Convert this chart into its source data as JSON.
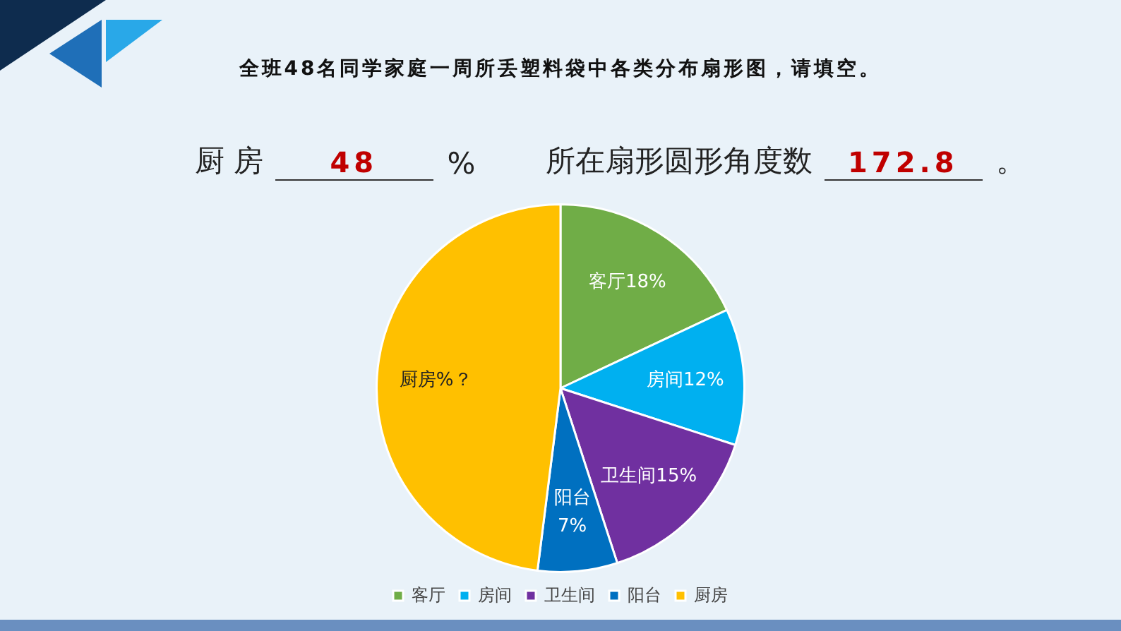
{
  "chart_data": {
    "type": "pie",
    "title": "全班48名同学家庭一周所丢塑料袋中各类分布扇形图，请填空。",
    "annotations": [
      "厨 房",
      "48",
      "%",
      "所在扇形圆形角度数",
      "172.8",
      "。"
    ],
    "categories": [
      "客厅",
      "房间",
      "卫生间",
      "阳台",
      "厨房"
    ],
    "values": [
      18,
      12,
      15,
      7,
      48
    ],
    "colors": [
      "#70ad47",
      "#00b0f0",
      "#7030a0",
      "#0070c0",
      "#ffc000"
    ],
    "value_labels": [
      "客厅18%",
      "房间12%",
      "卫生间15%",
      "阳台\n7%",
      "厨房%？"
    ],
    "legend": "bottom"
  }
}
